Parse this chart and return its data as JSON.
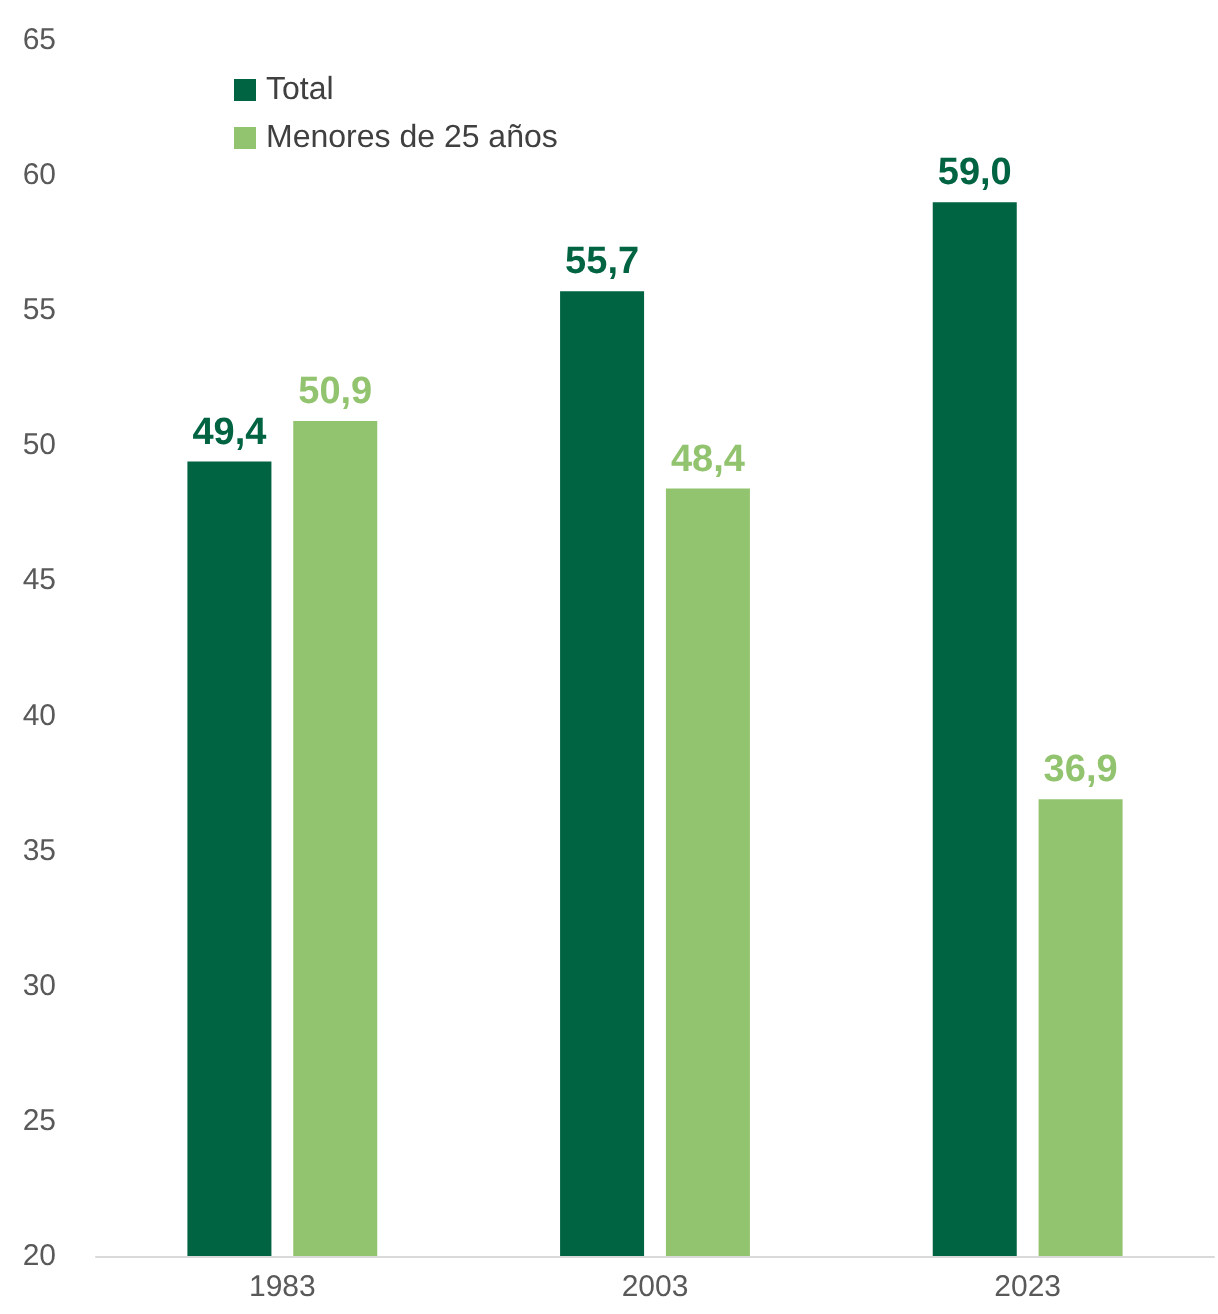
{
  "chart_data": {
    "type": "bar",
    "categories": [
      "1983",
      "2003",
      "2023"
    ],
    "series": [
      {
        "name": "Total",
        "color": "#006341",
        "values": [
          49.4,
          55.7,
          59.0
        ],
        "value_labels": [
          "49,4",
          "55,7",
          "59,0"
        ]
      },
      {
        "name": "Menores de 25 años",
        "color": "#92c36e",
        "values": [
          50.9,
          48.4,
          36.9
        ],
        "value_labels": [
          "50,9",
          "48,4",
          "36,9"
        ]
      }
    ],
    "ylim": [
      20,
      65
    ],
    "yticks": [
      20,
      25,
      30,
      35,
      40,
      45,
      50,
      55,
      60,
      65
    ],
    "grid": false,
    "legend": "top left"
  }
}
